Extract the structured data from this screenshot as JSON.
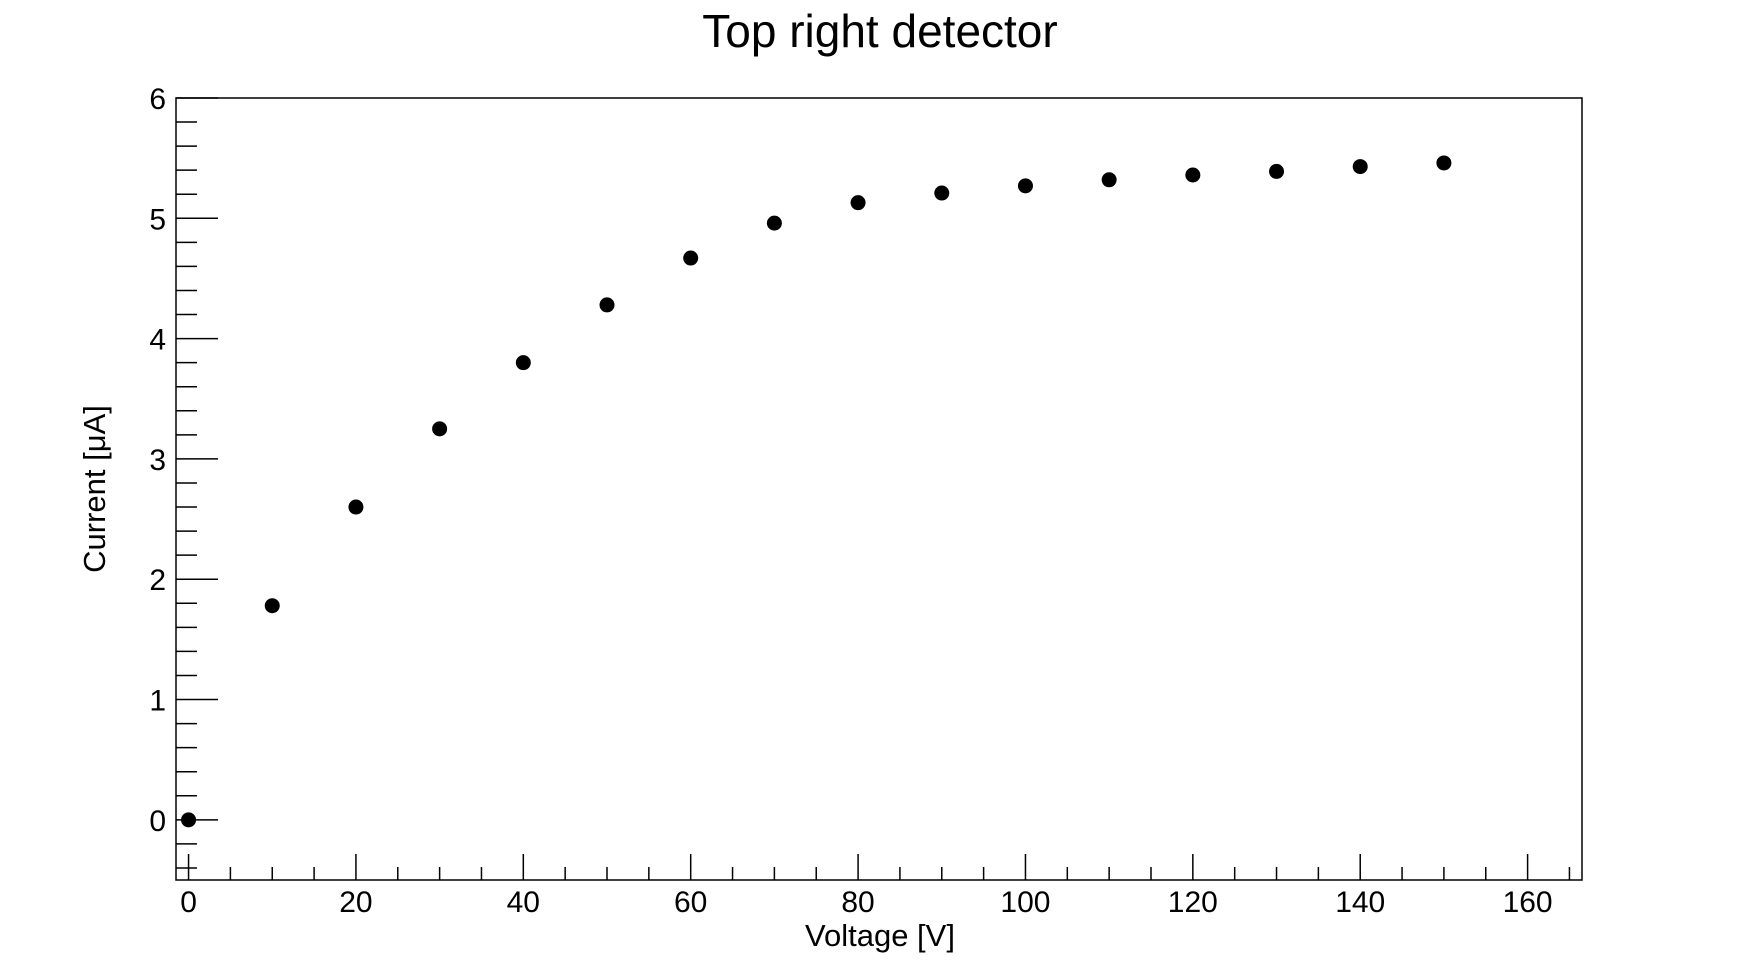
{
  "chart_data": {
    "type": "scatter",
    "title": "Top right detector",
    "xlabel": "Voltage [V]",
    "ylabel": "Current [μA]",
    "xlim": [
      -1.5,
      166.5
    ],
    "ylim": [
      -0.5,
      6
    ],
    "x_ticks": [
      0,
      20,
      40,
      60,
      80,
      100,
      120,
      140,
      160
    ],
    "x_tick_labels": [
      "0",
      "20",
      "40",
      "60",
      "80",
      "100",
      "120",
      "140",
      "160"
    ],
    "x_minor_step": 5,
    "y_ticks": [
      0,
      1,
      2,
      3,
      4,
      5,
      6
    ],
    "y_tick_labels": [
      "0",
      "1",
      "2",
      "3",
      "4",
      "5",
      "6"
    ],
    "y_minor_step": 0.2,
    "grid": false,
    "legend": "none",
    "marker_color": "#000000",
    "series": [
      {
        "x": [
          0,
          10,
          20,
          30,
          40,
          50,
          60,
          70,
          80,
          90,
          100,
          110,
          120,
          130,
          140,
          150
        ],
        "y": [
          0,
          1.78,
          2.6,
          3.25,
          3.8,
          4.28,
          4.67,
          4.96,
          5.13,
          5.21,
          5.27,
          5.32,
          5.36,
          5.39,
          5.43,
          5.46
        ]
      }
    ]
  }
}
